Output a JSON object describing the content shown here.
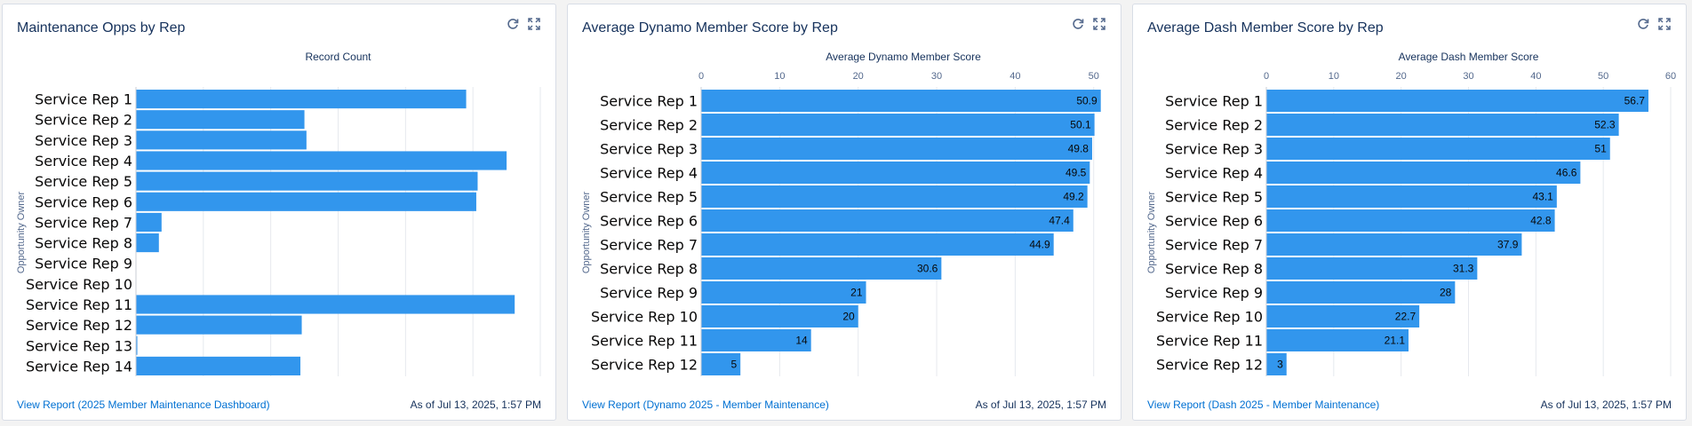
{
  "cards": [
    {
      "title": "Maintenance Opps by Rep",
      "report_link": "View Report (2025 Member Maintenance Dashboard)",
      "as_of": "As of Jul 13, 2025, 1:57 PM",
      "chart_data": {
        "type": "bar",
        "orientation": "horizontal",
        "title": "Record Count",
        "xlabel": "Record Count",
        "ylabel": "Opportunity Owner",
        "categories": [
          "Service Rep 1",
          "Service Rep 2",
          "Service Rep 3",
          "Service Rep 4",
          "Service Rep 5",
          "Service Rep 6",
          "Service Rep 7",
          "Service Rep 8",
          "Service Rep 9",
          "Service Rep 10",
          "Service Rep 11",
          "Service Rep 12",
          "Service Rep 13",
          "Service Rep 14"
        ],
        "values": [
          49,
          25,
          25.3,
          55,
          50.7,
          50.5,
          3.8,
          3.4,
          0,
          0,
          56.2,
          24.6,
          0.2,
          24.4
        ],
        "xlim": [
          0,
          60
        ],
        "show_x_ticks": false,
        "show_data_labels": false,
        "grid": true,
        "bar_color": "#3296ed"
      }
    },
    {
      "title": "Average Dynamo Member Score by Rep",
      "report_link": "View Report (Dynamo 2025 - Member Maintenance)",
      "as_of": "As of Jul 13, 2025, 1:57 PM",
      "chart_data": {
        "type": "bar",
        "orientation": "horizontal",
        "title": "Average Dynamo Member Score",
        "xlabel": "Average Dynamo Member Score",
        "ylabel": "Opportunity Owner",
        "categories": [
          "Service Rep 1",
          "Service Rep 2",
          "Service Rep 3",
          "Service Rep 4",
          "Service Rep 5",
          "Service Rep 6",
          "Service Rep 7",
          "Service Rep 8",
          "Service Rep 9",
          "Service Rep 10",
          "Service Rep 11",
          "Service Rep 12"
        ],
        "values": [
          50.9,
          50.1,
          49.8,
          49.5,
          49.2,
          47.4,
          44.9,
          30.6,
          21,
          20,
          14,
          5
        ],
        "value_labels": [
          "50.9",
          "50.1",
          "49.8",
          "49.5",
          "49.2",
          "47.4",
          "44.9",
          "30.6",
          "21",
          "20",
          "14",
          "5"
        ],
        "xlim": [
          0,
          51.5
        ],
        "x_ticks": [
          0,
          10,
          20,
          30,
          40,
          50
        ],
        "show_x_ticks": true,
        "show_data_labels": true,
        "grid": true,
        "bar_color": "#3296ed"
      }
    },
    {
      "title": "Average Dash Member Score by Rep",
      "report_link": "View Report (Dash 2025 - Member Maintenance)",
      "as_of": "As of Jul 13, 2025, 1:57 PM",
      "chart_data": {
        "type": "bar",
        "orientation": "horizontal",
        "title": "Average Dash Member Score",
        "xlabel": "Average Dash Member Score",
        "ylabel": "Opportunity Owner",
        "categories": [
          "Service Rep 1",
          "Service Rep 2",
          "Service Rep 3",
          "Service Rep 4",
          "Service Rep 5",
          "Service Rep 6",
          "Service Rep 7",
          "Service Rep 8",
          "Service Rep 9",
          "Service Rep 10",
          "Service Rep 11",
          "Service Rep 12"
        ],
        "values": [
          56.7,
          52.3,
          51,
          46.6,
          43.1,
          42.8,
          37.9,
          31.3,
          28,
          22.7,
          21.1,
          3
        ],
        "value_labels": [
          "56.7",
          "52.3",
          "51",
          "46.6",
          "43.1",
          "42.8",
          "37.9",
          "31.3",
          "28",
          "22.7",
          "21.1",
          "3"
        ],
        "xlim": [
          0,
          60
        ],
        "x_ticks": [
          0,
          10,
          20,
          30,
          40,
          50,
          60
        ],
        "show_x_ticks": true,
        "show_data_labels": true,
        "grid": true,
        "bar_color": "#3296ed"
      }
    }
  ],
  "icons": {
    "refresh": "refresh-icon",
    "expand": "expand-icon"
  }
}
